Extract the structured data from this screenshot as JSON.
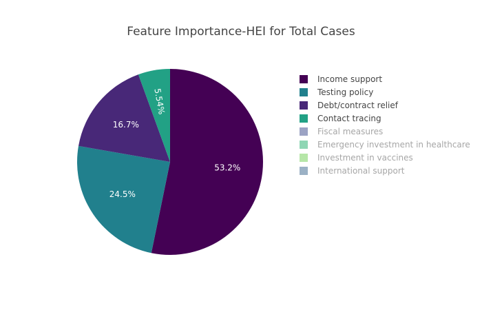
{
  "chart_data": {
    "type": "pie",
    "title": "Feature Importance-HEI for Total Cases",
    "slices": [
      {
        "label": "Income support",
        "value": 53.2,
        "display": "53.2%",
        "color": "#440154",
        "visible": true
      },
      {
        "label": "Testing policy",
        "value": 24.5,
        "display": "24.5%",
        "color": "#21808d",
        "visible": true
      },
      {
        "label": "Debt/contract relief",
        "value": 16.7,
        "display": "16.7%",
        "color": "#482878",
        "visible": true
      },
      {
        "label": "Contact tracing",
        "value": 5.54,
        "display": "5.54%",
        "color": "#22a185",
        "visible": true
      },
      {
        "label": "Fiscal measures",
        "value": 0,
        "display": "",
        "color": "#9ca3c4",
        "visible": false
      },
      {
        "label": "Emergency investment in healthcare",
        "value": 0,
        "display": "",
        "color": "#8fd6b4",
        "visible": false
      },
      {
        "label": "Investment in vaccines",
        "value": 0,
        "display": "",
        "color": "#b6e6a8",
        "visible": false
      },
      {
        "label": "International support",
        "value": 0,
        "display": "",
        "color": "#9bb1c5",
        "visible": false
      }
    ],
    "legend_position": "right",
    "direction": "clockwise",
    "start": "top"
  }
}
